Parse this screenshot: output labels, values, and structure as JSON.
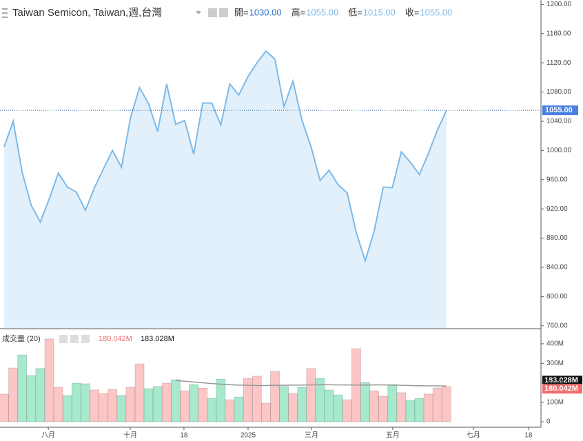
{
  "chart_data": [
    {
      "type": "area",
      "title": "Taiwan Semicon, Taiwan,週,台灣",
      "ohlc": [
        {
          "label": "開=",
          "value": "1030.00",
          "color": "#2a6fc9"
        },
        {
          "label": "高=",
          "value": "1055.00",
          "color": "#7cb9e8"
        },
        {
          "label": "低=",
          "value": "1015.00",
          "color": "#7cb9e8"
        },
        {
          "label": "收=",
          "value": "1055.00",
          "color": "#7cb9e8"
        }
      ],
      "values": [
        1005,
        1040,
        970,
        925,
        902,
        934,
        969,
        950,
        943,
        918,
        949,
        975,
        1000,
        977,
        1045,
        1086,
        1064,
        1026,
        1091,
        1036,
        1041,
        995,
        1065,
        1065,
        1035,
        1091,
        1076,
        1101,
        1120,
        1136,
        1125,
        1060,
        1095,
        1041,
        1005,
        959,
        973,
        953,
        942,
        888,
        849,
        890,
        950,
        949,
        998,
        984,
        967,
        996,
        1028,
        1055
      ],
      "color": "#7cb9e8",
      "fill": "#e1f0fb",
      "xlim": [
        -0.46,
        59.47
      ],
      "ylim": [
        757,
        1206
      ],
      "yticks": [
        {
          "value": 760,
          "label": "760.00"
        },
        {
          "value": 800,
          "label": "800.00"
        },
        {
          "value": 840,
          "label": "840.00"
        },
        {
          "value": 880,
          "label": "880.00"
        },
        {
          "value": 920,
          "label": "920.00"
        },
        {
          "value": 960,
          "label": "960.00"
        },
        {
          "value": 1000,
          "label": "1000.00"
        },
        {
          "value": 1040,
          "label": "1040.00"
        },
        {
          "value": 1080,
          "label": "1080.00"
        },
        {
          "value": 1120,
          "label": "1120.00"
        },
        {
          "value": 1160,
          "label": "1160.00"
        },
        {
          "value": 1200,
          "label": "1200.00"
        }
      ],
      "last_value": {
        "value": 1055,
        "label": "1055.00",
        "color": "#4a7fe0"
      }
    },
    {
      "type": "bar",
      "legend": "成交量 (20)",
      "xlim": [
        -0.46,
        59.47
      ],
      "ylim": [
        -28,
        474
      ],
      "yticks": [
        0,
        {
          "value": 100,
          "label": "100M"
        },
        {
          "value": 200,
          "label": "200M"
        },
        {
          "value": 300,
          "label": "300M"
        },
        {
          "value": 400,
          "label": "400M"
        }
      ],
      "xticks": [
        {
          "value": 4.89,
          "label": "八月"
        },
        {
          "value": 13.97,
          "label": "十月"
        },
        {
          "value": 19.92,
          "label": "18"
        },
        {
          "value": 27.02,
          "label": "2025"
        },
        {
          "value": 34.05,
          "label": "三月"
        },
        {
          "value": 43.05,
          "label": "五月"
        },
        {
          "value": 51.98,
          "label": "七月"
        },
        {
          "value": 58.09,
          "label": "18"
        }
      ],
      "series": [
        {
          "values": [
            142,
            276,
            343,
            237,
            273,
            425,
            177,
            135,
            198,
            195,
            163,
            145,
            166,
            135,
            177,
            297,
            170,
            181,
            198,
            216,
            159,
            191,
            173,
            120,
            219,
            113,
            127,
            223,
            234,
            96,
            258,
            181,
            145,
            177,
            273,
            223,
            163,
            138,
            113,
            375,
            202,
            159,
            131,
            191,
            149,
            110,
            120,
            142,
            173,
            180.042
          ],
          "colors": [
            "#fcc6c6",
            "#fcc6c6",
            "#a6e9cc",
            "#a6e9cc",
            "#a6e9cc",
            "#fcc6c6",
            "#fcc6c6",
            "#a6e9cc",
            "#a6e9cc",
            "#a6e9cc",
            "#fcc6c6",
            "#fcc6c6",
            "#fcc6c6",
            "#a6e9cc",
            "#fcc6c6",
            "#fcc6c6",
            "#a6e9cc",
            "#a6e9cc",
            "#fcc6c6",
            "#a6e9cc",
            "#fcc6c6",
            "#a6e9cc",
            "#fcc6c6",
            "#a6e9cc",
            "#a6e9cc",
            "#fcc6c6",
            "#a6e9cc",
            "#fcc6c6",
            "#fcc6c6",
            "#fcc6c6",
            "#fcc6c6",
            "#a6e9cc",
            "#fcc6c6",
            "#a6e9cc",
            "#fcc6c6",
            "#a6e9cc",
            "#a6e9cc",
            "#a6e9cc",
            "#fcc6c6",
            "#fcc6c6",
            "#a6e9cc",
            "#fcc6c6",
            "#fcc6c6",
            "#a6e9cc",
            "#fcc6c6",
            "#a6e9cc",
            "#a6e9cc",
            "#fcc6c6",
            "#fcc6c6",
            "#fcc6c6"
          ],
          "label_color": "#f26d6d",
          "value_labels": [
            null,
            null,
            null,
            null,
            null,
            null,
            null,
            null,
            null,
            null,
            null,
            null,
            null,
            null,
            null,
            null,
            null,
            null,
            null,
            null,
            null,
            null,
            null,
            null,
            null,
            null,
            null,
            null,
            null,
            null,
            null,
            null,
            null,
            null,
            null,
            null,
            null,
            null,
            null,
            null,
            null,
            null,
            null,
            null,
            null,
            null,
            null,
            null,
            null,
            "180.042M"
          ]
        },
        {
          "type": "line",
          "color": "#999999",
          "label_color": "#111111",
          "values": [
            null,
            null,
            null,
            null,
            null,
            null,
            null,
            null,
            null,
            null,
            null,
            null,
            null,
            null,
            null,
            null,
            null,
            null,
            null,
            212,
            208,
            204,
            200,
            196,
            193,
            190,
            188,
            187,
            186,
            186,
            187,
            187,
            188,
            188,
            189,
            190,
            190,
            189,
            189,
            188,
            188,
            189,
            189,
            188,
            187,
            186,
            185,
            184,
            184,
            183.028
          ],
          "value_labels": [
            null,
            null,
            null,
            null,
            null,
            null,
            null,
            null,
            null,
            null,
            null,
            null,
            null,
            null,
            null,
            null,
            null,
            null,
            null,
            null,
            null,
            null,
            null,
            null,
            null,
            null,
            null,
            null,
            null,
            null,
            null,
            null,
            null,
            null,
            null,
            null,
            null,
            null,
            null,
            null,
            null,
            null,
            null,
            null,
            null,
            null,
            null,
            null,
            null,
            "183.028M"
          ]
        }
      ]
    }
  ]
}
